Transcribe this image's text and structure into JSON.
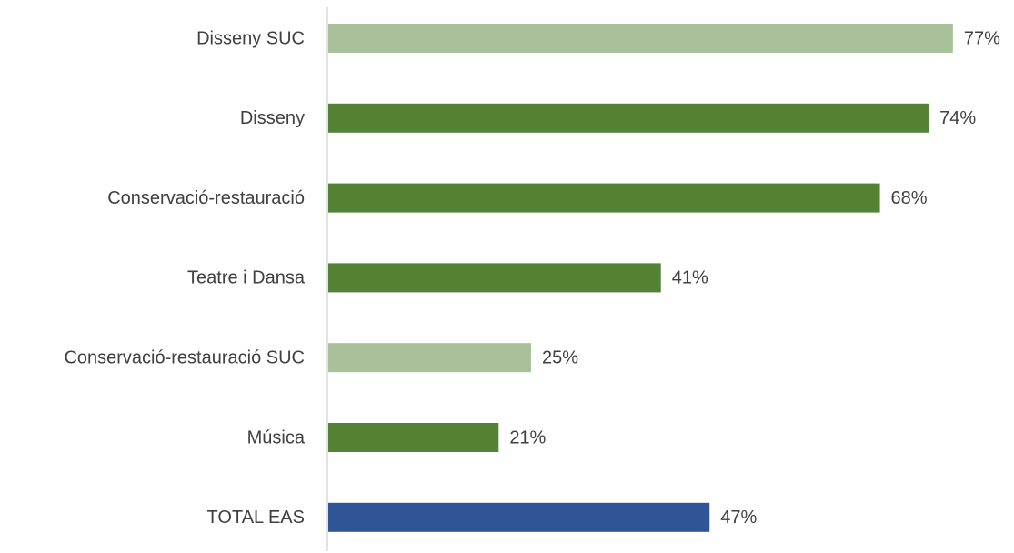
{
  "chart_data": {
    "type": "bar",
    "orientation": "horizontal",
    "categories": [
      "Disseny SUC",
      "Disseny",
      "Conservació-restauració",
      "Teatre i Dansa",
      "Conservació-restauració SUC",
      "Música",
      "TOTAL EAS"
    ],
    "values": [
      77,
      74,
      68,
      41,
      25,
      21,
      47
    ],
    "value_labels": [
      "77%",
      "74%",
      "68%",
      "41%",
      "25%",
      "21%",
      "47%"
    ],
    "colors": [
      "#a9c19a",
      "#548235",
      "#548235",
      "#548235",
      "#a9c19a",
      "#548235",
      "#2f5597"
    ]
  }
}
